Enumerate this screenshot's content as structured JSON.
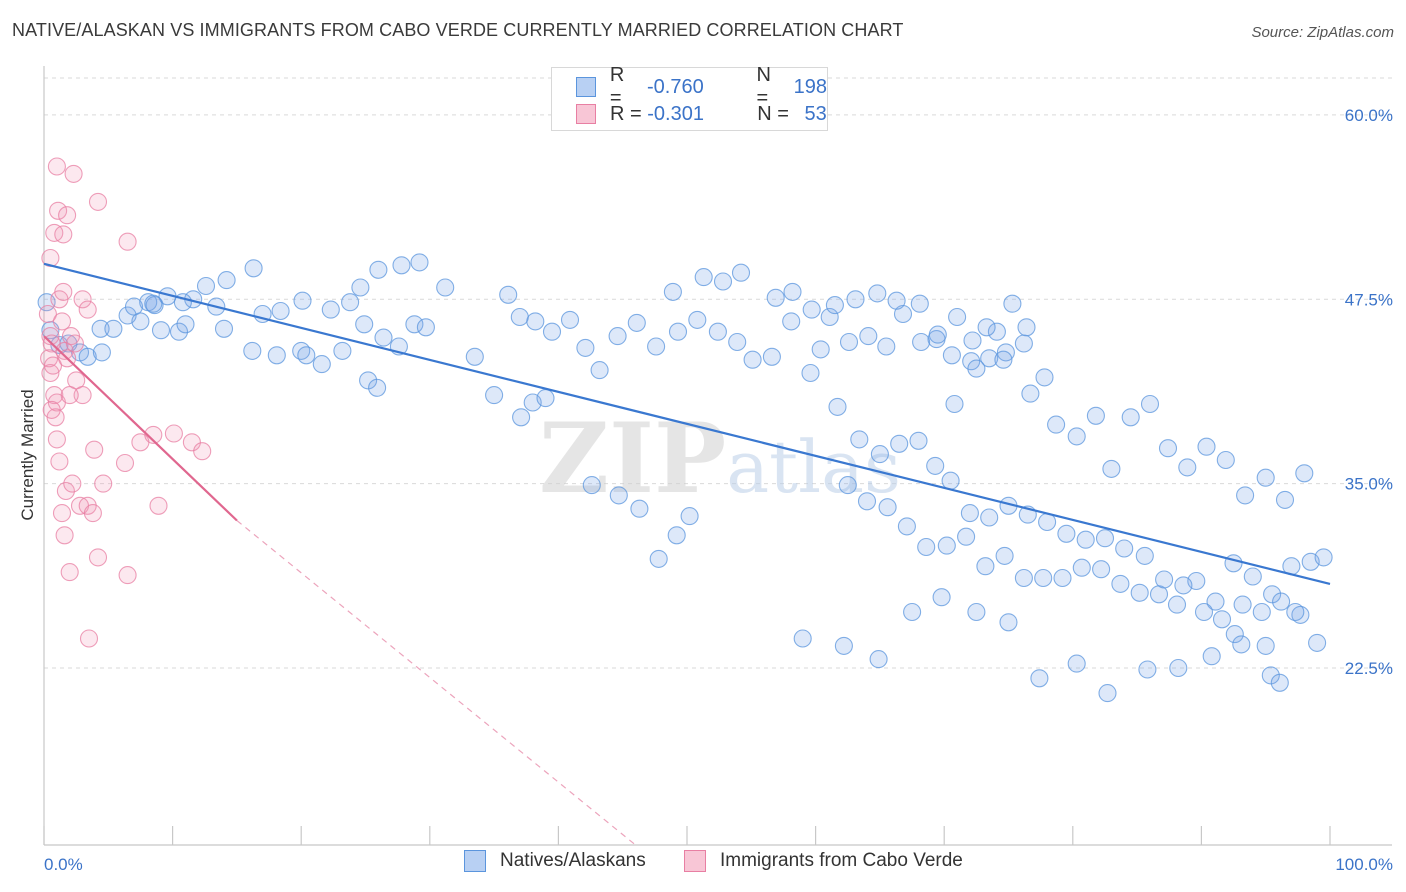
{
  "title": "NATIVE/ALASKAN VS IMMIGRANTS FROM CABO VERDE CURRENTLY MARRIED CORRELATION CHART",
  "source": "Source: ZipAtlas.com",
  "watermark": "ZIPatlas",
  "colors": {
    "blue": "#5b95dd",
    "blue_fill": "rgba(120,165,230,0.25)",
    "pink": "#e87fa3",
    "pink_fill": "rgba(240,150,180,0.22)",
    "blue_line": "#3a78d0",
    "pink_line": "#e0678f",
    "grid": "#d9d9d9",
    "label_blue": "#3b73c8"
  },
  "legend": {
    "rows": [
      {
        "r_label": "R =",
        "r_value": "-0.760",
        "n_label": "N =",
        "n_value": "198"
      },
      {
        "r_label": "R =",
        "r_value": "-0.301",
        "n_label": "N =",
        "n_value": "53"
      }
    ]
  },
  "bottom_legend": {
    "series1": "Natives/Alaskans",
    "series2": "Immigrants from Cabo Verde"
  },
  "chart_data": {
    "type": "scatter",
    "title": "NATIVE/ALASKAN VS IMMIGRANTS FROM CABO VERDE CURRENTLY MARRIED CORRELATION CHART",
    "ylabel": "Currently Married",
    "xlabel": "",
    "x_tick_labels": [
      "0.0%",
      "100.0%"
    ],
    "y_tick_labels": [
      "60.0%",
      "47.5%",
      "35.0%",
      "22.5%"
    ],
    "y_ticks": [
      60.0,
      47.5,
      35.0,
      22.5
    ],
    "xlim": [
      0,
      100
    ],
    "ylim": [
      10.5,
      62.5
    ],
    "grid": true,
    "series": [
      {
        "name": "Natives/Alaskans",
        "trend": {
          "x": [
            0,
            100
          ],
          "y": [
            49.9,
            28.2
          ]
        },
        "points": [
          [
            0.2,
            47.3
          ],
          [
            0.5,
            45.4
          ],
          [
            1.2,
            44.4
          ],
          [
            1.9,
            44.5
          ],
          [
            2.8,
            43.9
          ],
          [
            3.4,
            43.6
          ],
          [
            4.5,
            43.9
          ],
          [
            4.4,
            45.5
          ],
          [
            5.4,
            45.5
          ],
          [
            6.5,
            46.4
          ],
          [
            7.0,
            47.0
          ],
          [
            7.5,
            46.0
          ],
          [
            8.1,
            47.3
          ],
          [
            8.6,
            47.1
          ],
          [
            9.1,
            45.4
          ],
          [
            10.5,
            45.3
          ],
          [
            11.0,
            45.8
          ],
          [
            13.4,
            47.0
          ],
          [
            14.0,
            45.5
          ],
          [
            16.2,
            44.0
          ],
          [
            18.1,
            43.7
          ],
          [
            20.0,
            44.0
          ],
          [
            20.4,
            43.7
          ],
          [
            21.6,
            43.1
          ],
          [
            23.2,
            44.0
          ],
          [
            24.9,
            45.8
          ],
          [
            26.4,
            44.9
          ],
          [
            27.6,
            44.3
          ],
          [
            28.8,
            45.8
          ],
          [
            29.7,
            45.6
          ],
          [
            31.2,
            48.3
          ],
          [
            29.2,
            50.0
          ],
          [
            27.8,
            49.8
          ],
          [
            26.0,
            49.5
          ],
          [
            24.6,
            48.3
          ],
          [
            23.8,
            47.3
          ],
          [
            22.3,
            46.8
          ],
          [
            20.1,
            47.4
          ],
          [
            18.4,
            46.7
          ],
          [
            17.0,
            46.5
          ],
          [
            16.3,
            49.6
          ],
          [
            14.2,
            48.8
          ],
          [
            12.6,
            48.4
          ],
          [
            11.6,
            47.5
          ],
          [
            10.8,
            47.3
          ],
          [
            9.6,
            47.7
          ],
          [
            8.5,
            47.2
          ],
          [
            25.2,
            42.0
          ],
          [
            25.9,
            41.5
          ],
          [
            33.5,
            43.6
          ],
          [
            35.0,
            41.0
          ],
          [
            37.1,
            39.5
          ],
          [
            38.0,
            40.5
          ],
          [
            39.0,
            40.8
          ],
          [
            42.6,
            34.9
          ],
          [
            44.7,
            34.2
          ],
          [
            46.3,
            33.3
          ],
          [
            47.8,
            29.9
          ],
          [
            49.2,
            31.5
          ],
          [
            50.2,
            32.8
          ],
          [
            36.1,
            47.8
          ],
          [
            37.0,
            46.3
          ],
          [
            38.2,
            46.0
          ],
          [
            39.5,
            45.3
          ],
          [
            40.9,
            46.1
          ],
          [
            42.1,
            44.2
          ],
          [
            43.2,
            42.7
          ],
          [
            44.6,
            45.0
          ],
          [
            46.1,
            45.9
          ],
          [
            47.6,
            44.3
          ],
          [
            49.3,
            45.3
          ],
          [
            50.8,
            46.1
          ],
          [
            52.4,
            45.3
          ],
          [
            53.9,
            44.6
          ],
          [
            55.1,
            43.4
          ],
          [
            56.6,
            43.6
          ],
          [
            58.1,
            46.0
          ],
          [
            59.6,
            42.5
          ],
          [
            61.1,
            46.3
          ],
          [
            62.6,
            44.6
          ],
          [
            64.1,
            45.0
          ],
          [
            65.5,
            44.3
          ],
          [
            66.8,
            46.5
          ],
          [
            68.2,
            44.6
          ],
          [
            69.4,
            44.8
          ],
          [
            70.6,
            43.7
          ],
          [
            72.1,
            43.3
          ],
          [
            73.5,
            43.5
          ],
          [
            74.8,
            43.9
          ],
          [
            76.2,
            44.5
          ],
          [
            48.9,
            48.0
          ],
          [
            51.3,
            49.0
          ],
          [
            52.8,
            48.7
          ],
          [
            54.2,
            49.3
          ],
          [
            56.9,
            47.6
          ],
          [
            58.2,
            48.0
          ],
          [
            59.7,
            46.8
          ],
          [
            61.5,
            47.1
          ],
          [
            63.1,
            47.5
          ],
          [
            64.8,
            47.9
          ],
          [
            66.3,
            47.4
          ],
          [
            68.1,
            47.2
          ],
          [
            69.5,
            45.1
          ],
          [
            71.0,
            46.3
          ],
          [
            72.2,
            44.7
          ],
          [
            74.1,
            45.3
          ],
          [
            75.3,
            47.2
          ],
          [
            76.4,
            45.6
          ],
          [
            73.3,
            45.6
          ],
          [
            70.8,
            40.4
          ],
          [
            72.5,
            42.8
          ],
          [
            74.6,
            43.4
          ],
          [
            76.7,
            41.1
          ],
          [
            77.8,
            42.2
          ],
          [
            78.7,
            39.0
          ],
          [
            80.3,
            38.2
          ],
          [
            81.8,
            39.6
          ],
          [
            83.0,
            36.0
          ],
          [
            84.5,
            39.5
          ],
          [
            86.0,
            40.4
          ],
          [
            87.4,
            37.4
          ],
          [
            88.9,
            36.1
          ],
          [
            90.4,
            37.5
          ],
          [
            91.9,
            36.6
          ],
          [
            93.4,
            34.2
          ],
          [
            95.0,
            35.4
          ],
          [
            96.5,
            33.9
          ],
          [
            98.0,
            35.7
          ],
          [
            62.5,
            34.9
          ],
          [
            64.0,
            33.8
          ],
          [
            65.6,
            33.4
          ],
          [
            67.1,
            32.1
          ],
          [
            68.6,
            30.7
          ],
          [
            70.2,
            30.8
          ],
          [
            71.7,
            31.4
          ],
          [
            73.2,
            29.4
          ],
          [
            74.7,
            30.1
          ],
          [
            76.2,
            28.6
          ],
          [
            77.7,
            28.6
          ],
          [
            79.2,
            28.6
          ],
          [
            80.7,
            29.3
          ],
          [
            82.2,
            29.2
          ],
          [
            83.7,
            28.2
          ],
          [
            85.2,
            27.6
          ],
          [
            86.7,
            27.5
          ],
          [
            88.1,
            26.8
          ],
          [
            89.6,
            28.4
          ],
          [
            91.1,
            27.0
          ],
          [
            92.5,
            29.6
          ],
          [
            94.0,
            28.7
          ],
          [
            95.5,
            27.5
          ],
          [
            97.0,
            29.4
          ],
          [
            98.5,
            29.7
          ],
          [
            99.5,
            30.0
          ],
          [
            60.4,
            44.1
          ],
          [
            61.7,
            40.2
          ],
          [
            63.4,
            38.0
          ],
          [
            65.0,
            37.0
          ],
          [
            66.5,
            37.7
          ],
          [
            68.0,
            37.9
          ],
          [
            69.3,
            36.2
          ],
          [
            70.5,
            35.2
          ],
          [
            72.0,
            33.0
          ],
          [
            73.5,
            32.7
          ],
          [
            75.0,
            33.5
          ],
          [
            76.5,
            32.9
          ],
          [
            78.0,
            32.4
          ],
          [
            79.5,
            31.6
          ],
          [
            81.0,
            31.2
          ],
          [
            82.5,
            31.3
          ],
          [
            84.0,
            30.6
          ],
          [
            85.6,
            30.1
          ],
          [
            87.1,
            28.5
          ],
          [
            88.6,
            28.1
          ],
          [
            90.2,
            26.3
          ],
          [
            91.6,
            25.8
          ],
          [
            93.2,
            26.8
          ],
          [
            94.7,
            26.3
          ],
          [
            96.2,
            27.0
          ],
          [
            97.7,
            26.1
          ],
          [
            99.0,
            24.2
          ],
          [
            77.4,
            21.8
          ],
          [
            80.3,
            22.8
          ],
          [
            82.7,
            20.8
          ],
          [
            85.8,
            22.4
          ],
          [
            88.2,
            22.5
          ],
          [
            90.8,
            23.3
          ],
          [
            92.6,
            24.8
          ],
          [
            95.0,
            24.0
          ],
          [
            59.0,
            24.5
          ],
          [
            62.2,
            24.0
          ],
          [
            64.9,
            23.1
          ],
          [
            67.5,
            26.3
          ],
          [
            69.8,
            27.3
          ],
          [
            72.5,
            26.3
          ],
          [
            75.0,
            25.6
          ],
          [
            93.1,
            24.1
          ],
          [
            95.4,
            22.0
          ],
          [
            96.1,
            21.5
          ],
          [
            97.3,
            26.3
          ]
        ]
      },
      {
        "name": "Immigrants from Cabo Verde",
        "trend": {
          "x": [
            0,
            15
          ],
          "y": [
            45.0,
            32.5
          ]
        },
        "trend_dashed": {
          "x": [
            15,
            46
          ],
          "y": [
            32.5,
            10.5
          ]
        },
        "points": [
          [
            0.3,
            46.5
          ],
          [
            0.5,
            45.0
          ],
          [
            0.6,
            44.5
          ],
          [
            0.4,
            43.5
          ],
          [
            0.5,
            42.5
          ],
          [
            0.7,
            43.0
          ],
          [
            0.8,
            41.0
          ],
          [
            1.0,
            40.5
          ],
          [
            0.9,
            39.5
          ],
          [
            0.6,
            40.0
          ],
          [
            1.2,
            47.5
          ],
          [
            1.4,
            46.0
          ],
          [
            1.6,
            44.0
          ],
          [
            1.8,
            43.5
          ],
          [
            2.1,
            45.0
          ],
          [
            1.5,
            48.0
          ],
          [
            2.5,
            42.0
          ],
          [
            3.0,
            41.0
          ],
          [
            1.0,
            38.0
          ],
          [
            1.2,
            36.5
          ],
          [
            1.7,
            34.5
          ],
          [
            2.2,
            35.0
          ],
          [
            2.8,
            33.5
          ],
          [
            3.4,
            33.5
          ],
          [
            3.8,
            33.0
          ],
          [
            1.4,
            33.0
          ],
          [
            1.6,
            31.5
          ],
          [
            2.0,
            29.0
          ],
          [
            4.2,
            30.0
          ],
          [
            6.5,
            28.8
          ],
          [
            0.8,
            52.0
          ],
          [
            1.1,
            53.5
          ],
          [
            1.8,
            53.2
          ],
          [
            0.5,
            50.3
          ],
          [
            1.5,
            51.9
          ],
          [
            1.0,
            56.5
          ],
          [
            2.3,
            56.0
          ],
          [
            4.2,
            54.1
          ],
          [
            6.5,
            51.4
          ],
          [
            3.0,
            47.5
          ],
          [
            3.4,
            46.8
          ],
          [
            3.9,
            37.3
          ],
          [
            4.6,
            35.0
          ],
          [
            6.3,
            36.4
          ],
          [
            7.5,
            37.8
          ],
          [
            8.5,
            38.3
          ],
          [
            10.1,
            38.4
          ],
          [
            11.5,
            37.8
          ],
          [
            12.3,
            37.2
          ],
          [
            8.9,
            33.5
          ],
          [
            2.0,
            41.0
          ],
          [
            3.5,
            24.5
          ],
          [
            2.4,
            44.5
          ]
        ]
      }
    ]
  }
}
